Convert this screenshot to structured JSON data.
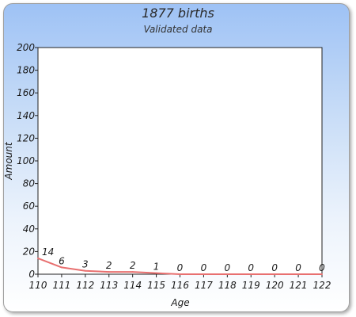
{
  "chart_data": {
    "type": "line",
    "title": "1877 births",
    "subtitle": "Validated data",
    "xlabel": "Age",
    "ylabel": "Amount",
    "x": [
      110,
      111,
      112,
      113,
      114,
      115,
      116,
      117,
      118,
      119,
      120,
      121,
      122
    ],
    "xticks": [
      "110",
      "111",
      "112",
      "113",
      "114",
      "115",
      "116",
      "117",
      "118",
      "119",
      "120",
      "121",
      "122"
    ],
    "yticks": [
      "0",
      "20",
      "40",
      "60",
      "80",
      "100",
      "120",
      "140",
      "160",
      "180",
      "200"
    ],
    "ylim": [
      0,
      200
    ],
    "grid": false,
    "series": [
      {
        "values": [
          14,
          6,
          3,
          2,
          2,
          1,
          0,
          0,
          0,
          0,
          0,
          0,
          0
        ],
        "labels": [
          "14",
          "6",
          "3",
          "2",
          "2",
          "1",
          "0",
          "0",
          "0",
          "0",
          "0",
          "0",
          "0"
        ],
        "color": "#e87070"
      }
    ]
  }
}
